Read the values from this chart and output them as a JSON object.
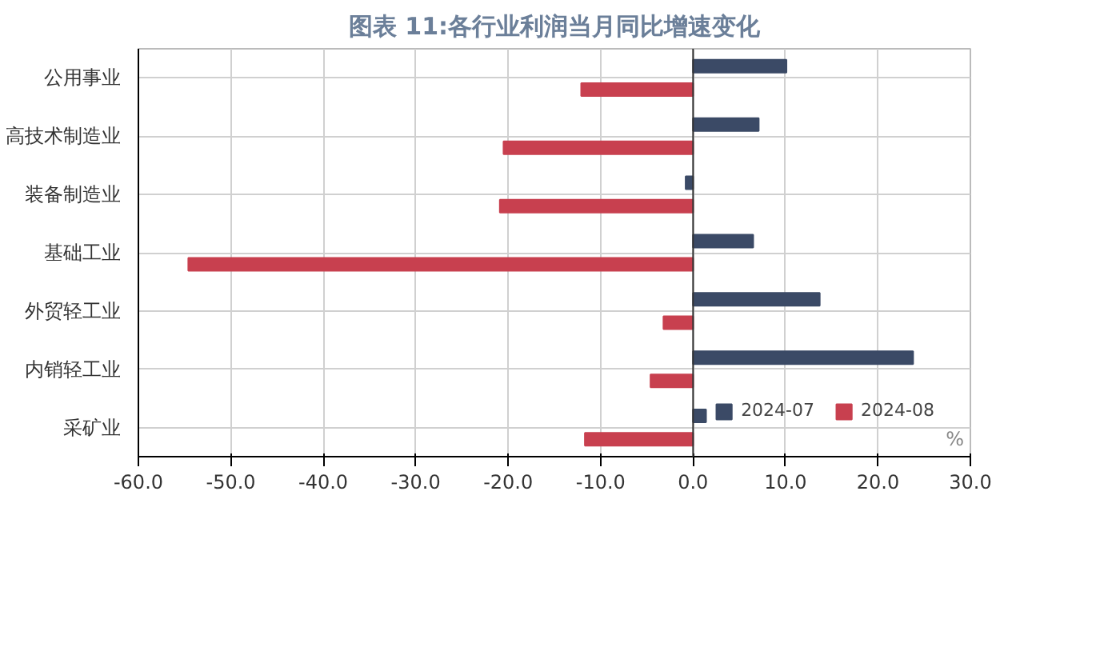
{
  "chart_data": {
    "type": "bar",
    "orientation": "horizontal",
    "title": "图表 11:各行业利润当月同比增速变化",
    "categories": [
      "公用事业",
      "高技术制造业",
      "装备制造业",
      "基础工业",
      "外贸轻工业",
      "内销轻工业",
      "采矿业"
    ],
    "series": [
      {
        "name": "2024-07",
        "color": "#3b4a66",
        "values": [
          10.1,
          7.1,
          -0.8,
          6.5,
          13.7,
          23.8,
          1.4
        ]
      },
      {
        "name": "2024-08",
        "color": "#c8404f",
        "values": [
          -12.1,
          -20.5,
          -20.9,
          -54.6,
          -3.2,
          -4.6,
          -11.7
        ]
      }
    ],
    "xlim": [
      -60,
      30
    ],
    "xticks": [
      {
        "value": -60,
        "label": "-60.0"
      },
      {
        "value": -50,
        "label": "-50.0"
      },
      {
        "value": -40,
        "label": "-40.0"
      },
      {
        "value": -30,
        "label": "-30.0"
      },
      {
        "value": -20,
        "label": "-20.0"
      },
      {
        "value": -10,
        "label": "-10.0"
      },
      {
        "value": 0,
        "label": "0.0"
      },
      {
        "value": 10,
        "label": "10.0"
      },
      {
        "value": 20,
        "label": "20.0"
      },
      {
        "value": 30,
        "label": "30.0"
      }
    ],
    "annotations": [
      "%"
    ],
    "grid": true,
    "legend": "bottom right"
  }
}
